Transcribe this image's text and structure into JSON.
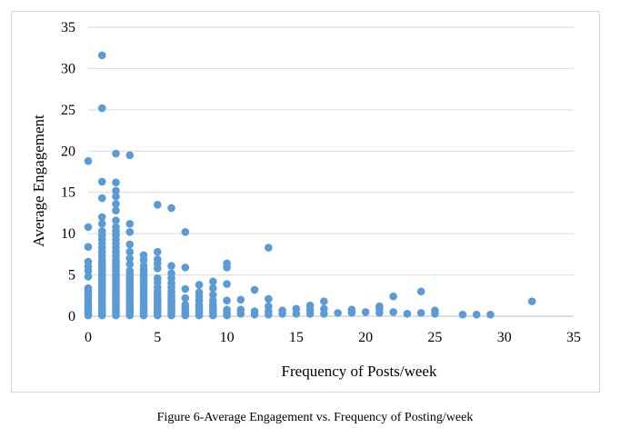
{
  "caption": "Figure 6-Average Engagement vs. Frequency of Posting/week",
  "chart_data": {
    "type": "scatter",
    "title": "",
    "xlabel": "Frequency of Posts/week",
    "ylabel": "Average Engagement",
    "xlim": [
      0,
      35
    ],
    "ylim": [
      0,
      35
    ],
    "x_ticks": [
      0,
      5,
      10,
      15,
      20,
      25,
      30,
      35
    ],
    "y_ticks": [
      0,
      5,
      10,
      15,
      20,
      25,
      30,
      35
    ],
    "grid": "horizontal",
    "legend": "none",
    "marker_color": "#5b9bd5",
    "series": [
      {
        "points": [
          [
            0,
            0.1
          ],
          [
            0,
            0.3
          ],
          [
            0,
            0.5
          ],
          [
            0,
            0.7
          ],
          [
            0,
            1.0
          ],
          [
            0,
            1.3
          ],
          [
            0,
            1.6
          ],
          [
            0,
            1.9
          ],
          [
            0,
            2.2
          ],
          [
            0,
            2.5
          ],
          [
            0,
            2.8
          ],
          [
            0,
            3.1
          ],
          [
            0,
            3.4
          ],
          [
            0,
            4.8
          ],
          [
            0,
            5.5
          ],
          [
            0,
            6.0
          ],
          [
            0,
            6.6
          ],
          [
            0,
            8.4
          ],
          [
            0,
            10.8
          ],
          [
            0,
            18.8
          ],
          [
            1,
            0.1
          ],
          [
            1,
            0.4
          ],
          [
            1,
            0.7
          ],
          [
            1,
            1.0
          ],
          [
            1,
            1.3
          ],
          [
            1,
            1.6
          ],
          [
            1,
            1.9
          ],
          [
            1,
            2.2
          ],
          [
            1,
            2.5
          ],
          [
            1,
            2.8
          ],
          [
            1,
            3.1
          ],
          [
            1,
            3.4
          ],
          [
            1,
            3.7
          ],
          [
            1,
            4.0
          ],
          [
            1,
            4.3
          ],
          [
            1,
            4.6
          ],
          [
            1,
            4.9
          ],
          [
            1,
            5.2
          ],
          [
            1,
            5.5
          ],
          [
            1,
            5.8
          ],
          [
            1,
            6.1
          ],
          [
            1,
            6.4
          ],
          [
            1,
            6.8
          ],
          [
            1,
            7.3
          ],
          [
            1,
            7.8
          ],
          [
            1,
            8.3
          ],
          [
            1,
            8.8
          ],
          [
            1,
            9.3
          ],
          [
            1,
            9.8
          ],
          [
            1,
            10.3
          ],
          [
            1,
            11.2
          ],
          [
            1,
            12.0
          ],
          [
            1,
            14.3
          ],
          [
            1,
            16.3
          ],
          [
            1,
            25.2
          ],
          [
            1,
            31.6
          ],
          [
            2,
            0.1
          ],
          [
            2,
            0.4
          ],
          [
            2,
            0.7
          ],
          [
            2,
            1.0
          ],
          [
            2,
            1.3
          ],
          [
            2,
            1.6
          ],
          [
            2,
            1.9
          ],
          [
            2,
            2.2
          ],
          [
            2,
            2.5
          ],
          [
            2,
            2.8
          ],
          [
            2,
            3.1
          ],
          [
            2,
            3.4
          ],
          [
            2,
            3.7
          ],
          [
            2,
            4.0
          ],
          [
            2,
            4.3
          ],
          [
            2,
            4.6
          ],
          [
            2,
            4.9
          ],
          [
            2,
            5.2
          ],
          [
            2,
            5.5
          ],
          [
            2,
            5.8
          ],
          [
            2,
            6.1
          ],
          [
            2,
            6.4
          ],
          [
            2,
            6.8
          ],
          [
            2,
            7.3
          ],
          [
            2,
            7.8
          ],
          [
            2,
            8.3
          ],
          [
            2,
            8.8
          ],
          [
            2,
            9.3
          ],
          [
            2,
            9.8
          ],
          [
            2,
            10.3
          ],
          [
            2,
            10.8
          ],
          [
            2,
            11.6
          ],
          [
            2,
            12.8
          ],
          [
            2,
            13.6
          ],
          [
            2,
            14.5
          ],
          [
            2,
            15.2
          ],
          [
            2,
            16.2
          ],
          [
            2,
            19.7
          ],
          [
            3,
            0.1
          ],
          [
            3,
            0.4
          ],
          [
            3,
            0.7
          ],
          [
            3,
            1.0
          ],
          [
            3,
            1.3
          ],
          [
            3,
            1.6
          ],
          [
            3,
            1.9
          ],
          [
            3,
            2.2
          ],
          [
            3,
            2.5
          ],
          [
            3,
            2.8
          ],
          [
            3,
            3.1
          ],
          [
            3,
            3.4
          ],
          [
            3,
            3.7
          ],
          [
            3,
            4.0
          ],
          [
            3,
            4.3
          ],
          [
            3,
            4.6
          ],
          [
            3,
            4.9
          ],
          [
            3,
            5.2
          ],
          [
            3,
            5.5
          ],
          [
            3,
            6.3
          ],
          [
            3,
            7.0
          ],
          [
            3,
            7.8
          ],
          [
            3,
            8.7
          ],
          [
            3,
            10.2
          ],
          [
            3,
            11.2
          ],
          [
            3,
            19.5
          ],
          [
            4,
            0.1
          ],
          [
            4,
            0.4
          ],
          [
            4,
            0.7
          ],
          [
            4,
            1.0
          ],
          [
            4,
            1.3
          ],
          [
            4,
            1.6
          ],
          [
            4,
            1.9
          ],
          [
            4,
            2.2
          ],
          [
            4,
            2.5
          ],
          [
            4,
            2.8
          ],
          [
            4,
            3.1
          ],
          [
            4,
            3.4
          ],
          [
            4,
            3.7
          ],
          [
            4,
            4.0
          ],
          [
            4,
            4.3
          ],
          [
            4,
            4.6
          ],
          [
            4,
            4.9
          ],
          [
            4,
            5.2
          ],
          [
            4,
            5.6
          ],
          [
            4,
            6.1
          ],
          [
            4,
            6.8
          ],
          [
            4,
            7.4
          ],
          [
            5,
            0.1
          ],
          [
            5,
            0.4
          ],
          [
            5,
            0.7
          ],
          [
            5,
            1.0
          ],
          [
            5,
            1.3
          ],
          [
            5,
            1.6
          ],
          [
            5,
            1.9
          ],
          [
            5,
            2.2
          ],
          [
            5,
            2.6
          ],
          [
            5,
            3.0
          ],
          [
            5,
            3.5
          ],
          [
            5,
            4.1
          ],
          [
            5,
            4.6
          ],
          [
            5,
            5.8
          ],
          [
            5,
            6.4
          ],
          [
            5,
            6.9
          ],
          [
            5,
            7.8
          ],
          [
            5,
            13.5
          ],
          [
            6,
            0.1
          ],
          [
            6,
            0.4
          ],
          [
            6,
            0.7
          ],
          [
            6,
            1.0
          ],
          [
            6,
            1.3
          ],
          [
            6,
            1.6
          ],
          [
            6,
            1.9
          ],
          [
            6,
            2.2
          ],
          [
            6,
            2.6
          ],
          [
            6,
            3.0
          ],
          [
            6,
            3.5
          ],
          [
            6,
            4.0
          ],
          [
            6,
            4.6
          ],
          [
            6,
            5.2
          ],
          [
            6,
            6.1
          ],
          [
            6,
            13.1
          ],
          [
            7,
            0.1
          ],
          [
            7,
            0.4
          ],
          [
            7,
            0.7
          ],
          [
            7,
            1.0
          ],
          [
            7,
            1.4
          ],
          [
            7,
            2.2
          ],
          [
            7,
            3.3
          ],
          [
            7,
            5.9
          ],
          [
            7,
            10.2
          ],
          [
            8,
            0.1
          ],
          [
            8,
            0.4
          ],
          [
            8,
            0.7
          ],
          [
            8,
            1.0
          ],
          [
            8,
            1.4
          ],
          [
            8,
            1.9
          ],
          [
            8,
            2.4
          ],
          [
            8,
            2.9
          ],
          [
            8,
            3.8
          ],
          [
            9,
            0.1
          ],
          [
            9,
            0.4
          ],
          [
            9,
            0.7
          ],
          [
            9,
            1.0
          ],
          [
            9,
            1.4
          ],
          [
            9,
            1.9
          ],
          [
            9,
            2.6
          ],
          [
            9,
            3.4
          ],
          [
            9,
            4.2
          ],
          [
            10,
            0.1
          ],
          [
            10,
            0.4
          ],
          [
            10,
            0.8
          ],
          [
            10,
            1.9
          ],
          [
            10,
            3.9
          ],
          [
            10,
            5.9
          ],
          [
            10,
            6.4
          ],
          [
            11,
            0.3
          ],
          [
            11,
            0.8
          ],
          [
            11,
            2.0
          ],
          [
            12,
            0.2
          ],
          [
            12,
            0.6
          ],
          [
            12,
            3.2
          ],
          [
            13,
            0.2
          ],
          [
            13,
            0.6
          ],
          [
            13,
            1.2
          ],
          [
            13,
            2.1
          ],
          [
            13,
            8.3
          ],
          [
            14,
            0.3
          ],
          [
            14,
            0.7
          ],
          [
            15,
            0.3
          ],
          [
            15,
            0.9
          ],
          [
            16,
            0.3
          ],
          [
            16,
            0.8
          ],
          [
            16,
            1.3
          ],
          [
            17,
            0.3
          ],
          [
            17,
            0.9
          ],
          [
            17,
            1.8
          ],
          [
            18,
            0.4
          ],
          [
            19,
            0.4
          ],
          [
            19,
            0.8
          ],
          [
            20,
            0.5
          ],
          [
            21,
            0.4
          ],
          [
            21,
            0.9
          ],
          [
            21,
            1.2
          ],
          [
            22,
            0.5
          ],
          [
            22,
            2.4
          ],
          [
            23,
            0.3
          ],
          [
            24,
            0.4
          ],
          [
            24,
            3.0
          ],
          [
            25,
            0.3
          ],
          [
            25,
            0.7
          ],
          [
            27,
            0.2
          ],
          [
            28,
            0.2
          ],
          [
            29,
            0.2
          ],
          [
            32,
            1.8
          ]
        ]
      }
    ]
  }
}
